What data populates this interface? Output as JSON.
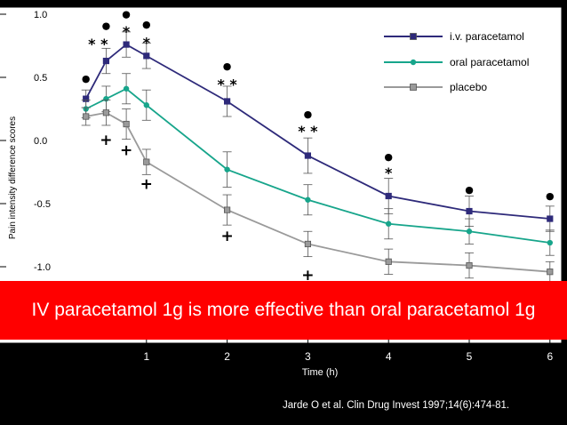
{
  "chart_data": {
    "type": "line",
    "title": "",
    "xlabel": "Time (h)",
    "ylabel": "Pain intensity difference scores",
    "xlim": [
      -0.9,
      6.1
    ],
    "ylim": [
      -1.35,
      1.05
    ],
    "xticks": [
      1,
      2,
      3,
      4,
      5,
      6
    ],
    "yticks": [
      1.0,
      0.5,
      0.0,
      -0.5,
      -1.0
    ],
    "ytick_labels": [
      "1.0",
      "0.5",
      "0.0",
      "-0.5",
      "-1.0"
    ],
    "legend_position": "top-right",
    "series": [
      {
        "name": "i.v. paracetamol",
        "color": "#2e2a7a",
        "marker": "square",
        "x": [
          0.25,
          0.5,
          0.75,
          1,
          2,
          3,
          4,
          5,
          6
        ],
        "y": [
          0.33,
          0.63,
          0.76,
          0.67,
          0.31,
          -0.12,
          -0.44,
          -0.56,
          -0.62
        ],
        "err": [
          0.07,
          0.1,
          0.1,
          0.1,
          0.12,
          0.14,
          0.14,
          0.12,
          0.1
        ]
      },
      {
        "name": "oral paracetamol",
        "color": "#17a58b",
        "marker": "circle",
        "x": [
          0.25,
          0.5,
          0.75,
          1,
          2,
          3,
          4,
          5,
          6
        ],
        "y": [
          0.25,
          0.33,
          0.41,
          0.28,
          -0.23,
          -0.47,
          -0.66,
          -0.72,
          -0.81
        ],
        "err": [
          0.07,
          0.1,
          0.12,
          0.12,
          0.14,
          0.12,
          0.12,
          0.1,
          0.1
        ]
      },
      {
        "name": "placebo",
        "color": "#9a9a9a",
        "marker": "square",
        "x": [
          0.25,
          0.5,
          0.75,
          1,
          2,
          3,
          4,
          5,
          6
        ],
        "y": [
          0.19,
          0.22,
          0.13,
          -0.17,
          -0.55,
          -0.82,
          -0.96,
          -0.99,
          -1.04
        ],
        "err": [
          0.07,
          0.1,
          0.12,
          0.1,
          0.12,
          0.1,
          0.1,
          0.1,
          0.08
        ]
      }
    ],
    "annotations": [
      {
        "x": 0.25,
        "y": 0.5,
        "text": "●"
      },
      {
        "x": 0.5,
        "y": 0.92,
        "text": "●"
      },
      {
        "x": 0.75,
        "y": 1.01,
        "text": "●"
      },
      {
        "x": 1,
        "y": 0.93,
        "text": "●"
      },
      {
        "x": 2,
        "y": 0.6,
        "text": "●"
      },
      {
        "x": 3,
        "y": 0.22,
        "text": "●"
      },
      {
        "x": 4,
        "y": -0.12,
        "text": "●"
      },
      {
        "x": 5,
        "y": -0.38,
        "text": "●"
      },
      {
        "x": 6,
        "y": -0.43,
        "text": "●"
      },
      {
        "x": 0.4,
        "y": 0.76,
        "text": "* *"
      },
      {
        "x": 0.75,
        "y": 0.86,
        "text": "*"
      },
      {
        "x": 1,
        "y": 0.77,
        "text": "*"
      },
      {
        "x": 2,
        "y": 0.44,
        "text": "* *"
      },
      {
        "x": 3,
        "y": 0.07,
        "text": "* *"
      },
      {
        "x": 4,
        "y": -0.26,
        "text": "*"
      },
      {
        "x": 0.5,
        "y": 0.0,
        "text": "+"
      },
      {
        "x": 0.75,
        "y": -0.08,
        "text": "+"
      },
      {
        "x": 1,
        "y": -0.35,
        "text": "+"
      },
      {
        "x": 2,
        "y": -0.76,
        "text": "+"
      },
      {
        "x": 3,
        "y": -1.07,
        "text": "+"
      }
    ]
  },
  "banner": {
    "text": "IV paracetamol 1g is more effective than oral paracetamol 1g",
    "color": "#ff0000"
  },
  "citation": "Jarde O et al. Clin Drug Invest 1997;14(6):474-81."
}
